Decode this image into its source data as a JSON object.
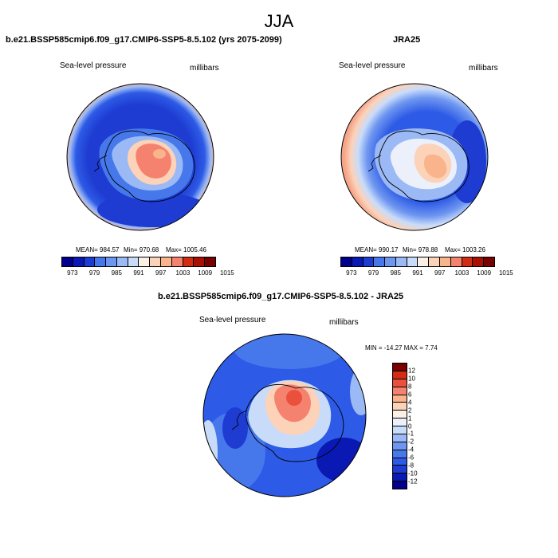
{
  "figure_title": "JJA",
  "palette": [
    "#00008c",
    "#0a19b4",
    "#1e3cd2",
    "#2d5ae6",
    "#4678eb",
    "#6e96f0",
    "#9bb9f5",
    "#c8dcfa",
    "#ebf0fa",
    "#faf0e6",
    "#fcd2b9",
    "#fab48c",
    "#f5826e",
    "#eb503c",
    "#d22d14",
    "#aa0f05",
    "#780000"
  ],
  "chart_data": [
    {
      "type": "contour-map",
      "title": "b.e21.BSSP585cmip6.f09_g17.CMIP6-SSP5-8.5.102 (yrs 2075-2099)",
      "left_label": "Sea-level pressure",
      "right_label": "millibars",
      "stats": {
        "mean": "984.57",
        "min": "970.68",
        "max": "1005.46"
      },
      "stats_text": {
        "mean": "MEAN= 984.57",
        "min": "Min= 970.68",
        "max": "Max= 1005.46"
      },
      "colorbar_ticks": [
        "973",
        "979",
        "985",
        "991",
        "997",
        "1003",
        "1009",
        "1015"
      ],
      "levels_count": 14
    },
    {
      "type": "contour-map",
      "title": "JRA25",
      "left_label": "Sea-level pressure",
      "right_label": "millibars",
      "stats": {
        "mean": "990.17",
        "min": "978.88",
        "max": "1003.26"
      },
      "stats_text": {
        "mean": "MEAN= 990.17",
        "min": "Min= 978.88",
        "max": "Max= 1003.26"
      },
      "colorbar_ticks": [
        "973",
        "979",
        "985",
        "991",
        "997",
        "1003",
        "1009",
        "1015"
      ],
      "levels_count": 14
    },
    {
      "type": "contour-map",
      "title": "b.e21.BSSP585cmip6.f09_g17.CMIP6-SSP5-8.5.102 - JRA25",
      "left_label": "Sea-level pressure",
      "right_label": "millibars",
      "stats": {
        "min": "-14.27",
        "max": "7.74"
      },
      "stats_text": "MIN = -14.27 MAX =   7.74",
      "colorbar_ticks": [
        "12",
        "10",
        "8",
        "6",
        "4",
        "2",
        "1",
        "0",
        "-1",
        "-2",
        "-4",
        "-6",
        "-8",
        "-10",
        "-12"
      ],
      "levels_count": 16
    }
  ]
}
